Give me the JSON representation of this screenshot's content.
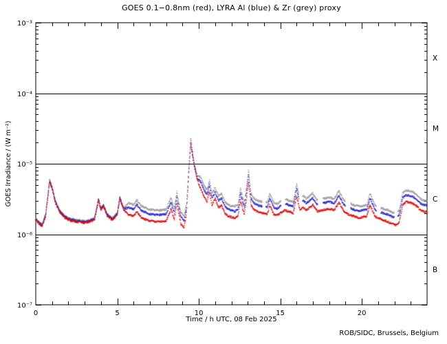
{
  "title": "GOES 0.1−0.8nm (red), LYRA Al (blue) & Zr (grey) proxy",
  "attribution": "ROB/SIDC, Brussels, Belgium",
  "colors": {
    "red": "#e00000",
    "blue": "#2222cc",
    "grey": "#999999",
    "axis": "#000000",
    "background": "#ffffff"
  },
  "axes": {
    "x": {
      "label": "Time / h UTC, 08 Feb 2025",
      "min": 0,
      "max": 24,
      "major_ticks": [
        0,
        5,
        10,
        15,
        20
      ],
      "major_tick_labels": [
        "0",
        "5",
        "10",
        "15",
        "20"
      ],
      "minor_step": 1
    },
    "y": {
      "label": "GOES Irradiance / (W m⁻²)",
      "log_min_exp": -7,
      "log_max_exp": -3,
      "major_tick_labels": [
        "10⁻³",
        "10⁻⁴",
        "10⁻⁵",
        "10⁻⁶",
        "10⁻⁷"
      ],
      "major_tick_exponents": [
        -3,
        -4,
        -5,
        -6,
        -7
      ]
    }
  },
  "flare_classes": [
    {
      "label": "X",
      "band_log": [
        -4,
        -3
      ]
    },
    {
      "label": "M",
      "band_log": [
        -5,
        -4
      ]
    },
    {
      "label": "C",
      "band_log": [
        -6,
        -5
      ]
    },
    {
      "label": "B",
      "band_log": [
        -7,
        -6
      ]
    }
  ],
  "class_boundary_lines_Wm2": [
    0.0001,
    1e-05,
    1e-06
  ],
  "chart_data": {
    "type": "scatter",
    "title": "GOES 0.1−0.8nm (red), LYRA Al (blue) & Zr (grey) proxy",
    "xlabel": "Time / h UTC, 08 Feb 2025",
    "ylabel": "GOES Irradiance / (W m⁻²)",
    "xlim": [
      0,
      24
    ],
    "ylim": [
      1e-07,
      0.001
    ],
    "yscale": "log",
    "grid": false,
    "legend": "none (series identified by colour in title)",
    "x_hours": [
      0,
      0.2,
      0.4,
      0.6,
      0.7,
      0.85,
      1.0,
      1.2,
      1.5,
      1.8,
      2.0,
      2.5,
      3.0,
      3.3,
      3.6,
      3.85,
      4.0,
      4.15,
      4.4,
      4.7,
      5.0,
      5.15,
      5.4,
      5.7,
      6.0,
      6.2,
      6.5,
      7.0,
      7.5,
      8.0,
      8.3,
      8.5,
      8.65,
      8.9,
      9.1,
      9.25,
      9.4,
      9.5,
      9.6,
      9.75,
      9.9,
      10.1,
      10.3,
      10.5,
      10.65,
      10.8,
      11.0,
      11.2,
      11.4,
      11.6,
      11.8,
      12.0,
      12.2,
      12.4,
      12.55,
      12.8,
      13.05,
      13.2,
      13.4,
      13.6,
      13.8,
      14.0,
      14.2,
      14.35,
      14.6,
      14.8,
      15.0,
      15.3,
      15.5,
      15.8,
      16.0,
      16.2,
      16.4,
      16.6,
      17.0,
      17.3,
      17.6,
      18.0,
      18.3,
      18.6,
      18.9,
      19.2,
      19.5,
      19.8,
      20.0,
      20.3,
      20.5,
      20.8,
      21.0,
      21.3,
      21.6,
      21.9,
      22.1,
      22.3,
      22.5,
      22.7,
      23.0,
      23.3,
      23.6,
      23.8,
      24.0
    ],
    "series": [
      {
        "name": "GOES 0.1-0.8nm",
        "color_key": "red",
        "values_Wm2": [
          1.6e-06,
          1.4e-06,
          1.3e-06,
          1.8e-06,
          2.8e-06,
          5.5e-06,
          4.5e-06,
          2.8e-06,
          2e-06,
          1.7e-06,
          1.6e-06,
          1.5e-06,
          1.45e-06,
          1.5e-06,
          1.6e-06,
          3e-06,
          2.2e-06,
          2.5e-06,
          1.8e-06,
          1.6e-06,
          1.9e-06,
          3.2e-06,
          2.2e-06,
          1.9e-06,
          1.8e-06,
          2.1e-06,
          1.7e-06,
          1.55e-06,
          1.5e-06,
          1.55e-06,
          2.3e-06,
          1.6e-06,
          2.8e-06,
          1.4e-06,
          1.25e-06,
          2e-06,
          9e-06,
          2.3e-05,
          1.5e-05,
          9e-06,
          6e-06,
          4.5e-06,
          3.5e-06,
          2.9e-06,
          4e-06,
          2.6e-06,
          3.2e-06,
          2.4e-06,
          2.6e-06,
          2e-06,
          1.8e-06,
          1.75e-06,
          1.7e-06,
          1.8e-06,
          3e-06,
          1.9e-06,
          5.5e-06,
          2.6e-06,
          2.2e-06,
          2.1e-06,
          2e-06,
          2e-06,
          1.9e-06,
          2.6e-06,
          1.9e-06,
          1.85e-06,
          2e-06,
          2.2e-06,
          2.1e-06,
          2e-06,
          3.5e-06,
          2.2e-06,
          2.4e-06,
          2.2e-06,
          2.6e-06,
          2.1e-06,
          2.2e-06,
          2.3e-06,
          2.2e-06,
          2.8e-06,
          2.1e-06,
          1.9e-06,
          1.8e-06,
          1.7e-06,
          1.75e-06,
          1.8e-06,
          2.6e-06,
          1.8e-06,
          1.7e-06,
          1.6e-06,
          1.5e-06,
          1.4e-06,
          1.35e-06,
          1.5e-06,
          2.6e-06,
          2.9e-06,
          2.8e-06,
          2.6e-06,
          2.2e-06,
          2.1e-06,
          2.1e-06
        ],
        "gaps_hours": []
      },
      {
        "name": "LYRA Al proxy",
        "color_key": "blue",
        "values_Wm2": [
          1.65e-06,
          1.44e-06,
          1.34e-06,
          1.85e-06,
          2.88e-06,
          5.67e-06,
          4.64e-06,
          2.88e-06,
          2.06e-06,
          1.75e-06,
          1.65e-06,
          1.55e-06,
          1.49e-06,
          1.55e-06,
          1.65e-06,
          3.09e-06,
          2.27e-06,
          2.58e-06,
          1.85e-06,
          1.65e-06,
          1.96e-06,
          3.3e-06,
          2.27e-06,
          2.38e-06,
          2.25e-06,
          2.63e-06,
          2.13e-06,
          1.94e-06,
          1.88e-06,
          1.94e-06,
          2.88e-06,
          2e-06,
          3.5e-06,
          1.75e-06,
          1.55e-06,
          2.4e-06,
          8.5e-06,
          1.9e-05,
          1.35e-05,
          8.5e-06,
          6.2e-06,
          5.6e-06,
          4.4e-06,
          3.6e-06,
          5e-06,
          3.25e-06,
          4e-06,
          3e-06,
          3.25e-06,
          2.5e-06,
          2.25e-06,
          2.2e-06,
          2.1e-06,
          2.25e-06,
          3.75e-06,
          2.4e-06,
          6.9e-06,
          3.25e-06,
          2.75e-06,
          2.6e-06,
          2.5e-06,
          2.5e-06,
          2.4e-06,
          3.25e-06,
          2.4e-06,
          2.3e-06,
          2.5e-06,
          2.75e-06,
          2.6e-06,
          2.5e-06,
          4.4e-06,
          2.75e-06,
          3e-06,
          2.75e-06,
          3.25e-06,
          2.6e-06,
          2.75e-06,
          2.9e-06,
          2.75e-06,
          3.5e-06,
          2.6e-06,
          2.4e-06,
          2.25e-06,
          2.1e-06,
          2.2e-06,
          2.25e-06,
          3.25e-06,
          2.25e-06,
          2.1e-06,
          2e-06,
          1.9e-06,
          1.75e-06,
          1.7e-06,
          1.9e-06,
          3.25e-06,
          3.6e-06,
          3.5e-06,
          3.25e-06,
          2.75e-06,
          2.6e-06,
          2.6e-06
        ],
        "gaps_hours": [
          [
            13.9,
            14.1
          ],
          [
            15.05,
            15.3
          ],
          [
            16.15,
            16.35
          ],
          [
            17.3,
            17.6
          ],
          [
            19.0,
            19.3
          ],
          [
            20.9,
            21.15
          ],
          [
            22.0,
            22.2
          ]
        ]
      },
      {
        "name": "LYRA Zr proxy",
        "color_key": "grey",
        "values_Wm2": [
          1.7e-06,
          1.48e-06,
          1.38e-06,
          1.91e-06,
          2.97e-06,
          5.83e-06,
          4.77e-06,
          2.97e-06,
          2.12e-06,
          1.8e-06,
          1.7e-06,
          1.59e-06,
          1.54e-06,
          1.59e-06,
          1.7e-06,
          3.18e-06,
          2.33e-06,
          2.65e-06,
          1.91e-06,
          1.7e-06,
          2.01e-06,
          3.39e-06,
          2.33e-06,
          2.76e-06,
          2.61e-06,
          3.05e-06,
          2.47e-06,
          2.25e-06,
          2.18e-06,
          2.25e-06,
          3.34e-06,
          2.32e-06,
          4.06e-06,
          2.03e-06,
          1.8e-06,
          2.8e-06,
          9.5e-06,
          2e-05,
          1.4e-05,
          9.2e-06,
          6.8e-06,
          6.5e-06,
          5.1e-06,
          4.2e-06,
          5.8e-06,
          3.8e-06,
          4.6e-06,
          3.5e-06,
          3.8e-06,
          2.9e-06,
          2.6e-06,
          2.5e-06,
          2.5e-06,
          2.6e-06,
          4.4e-06,
          2.8e-06,
          8e-06,
          3.8e-06,
          3.2e-06,
          3e-06,
          2.9e-06,
          2.9e-06,
          2.8e-06,
          3.8e-06,
          2.8e-06,
          2.7e-06,
          2.9e-06,
          3.2e-06,
          3e-06,
          2.9e-06,
          5.1e-06,
          3.2e-06,
          3.5e-06,
          3.2e-06,
          3.8e-06,
          3e-06,
          3.2e-06,
          3.3e-06,
          3.2e-06,
          4.1e-06,
          3e-06,
          2.8e-06,
          2.6e-06,
          2.5e-06,
          2.5e-06,
          2.6e-06,
          3.8e-06,
          2.6e-06,
          2.5e-06,
          2.3e-06,
          2.2e-06,
          2e-06,
          2e-06,
          2.2e-06,
          3.8e-06,
          4.2e-06,
          4.1e-06,
          3.8e-06,
          3.2e-06,
          3e-06,
          3e-06
        ],
        "gaps_hours": [
          [
            13.9,
            14.1
          ],
          [
            15.05,
            15.3
          ],
          [
            16.15,
            16.35
          ],
          [
            17.3,
            17.6
          ],
          [
            19.0,
            19.3
          ],
          [
            20.9,
            21.15
          ],
          [
            22.0,
            22.2
          ]
        ]
      }
    ],
    "annotations": [
      "X",
      "M",
      "C",
      "B"
    ],
    "peak_event": {
      "time_h": 9.5,
      "goes_peak_Wm2": 2.3e-05,
      "goes_class": "M2.3"
    }
  }
}
